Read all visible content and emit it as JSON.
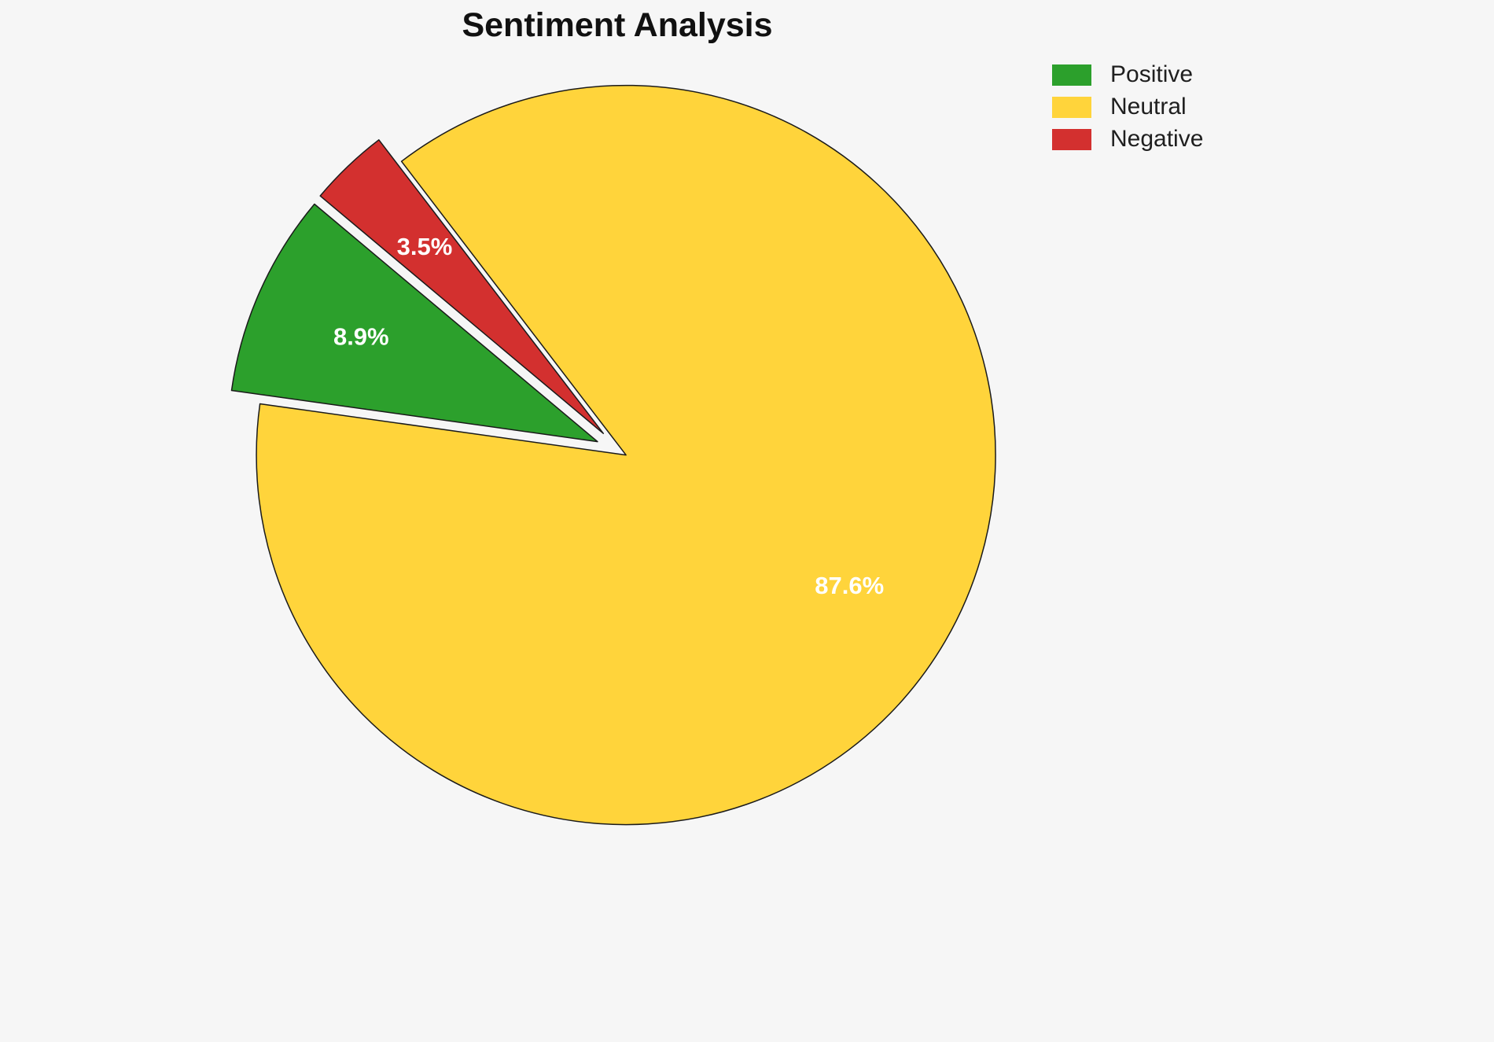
{
  "chart_data": {
    "type": "pie",
    "title": "Sentiment Analysis",
    "labels": [
      "Positive",
      "Neutral",
      "Negative"
    ],
    "values": [
      8.9,
      87.6,
      3.5
    ],
    "percent_labels": [
      "8.9%",
      "87.6%",
      "3.5%"
    ],
    "colors": [
      "#2ca02c",
      "#ffd43b",
      "#d3302f"
    ],
    "edge_color": "#1a1a1a",
    "percent_label_color": "#ffffff",
    "start_angle": 140,
    "direction": "counterclockwise",
    "explode": [
      0.07,
      0.015,
      0.07
    ],
    "legend": {
      "position": "top-right",
      "entries": [
        "Positive",
        "Neutral",
        "Negative"
      ]
    }
  }
}
